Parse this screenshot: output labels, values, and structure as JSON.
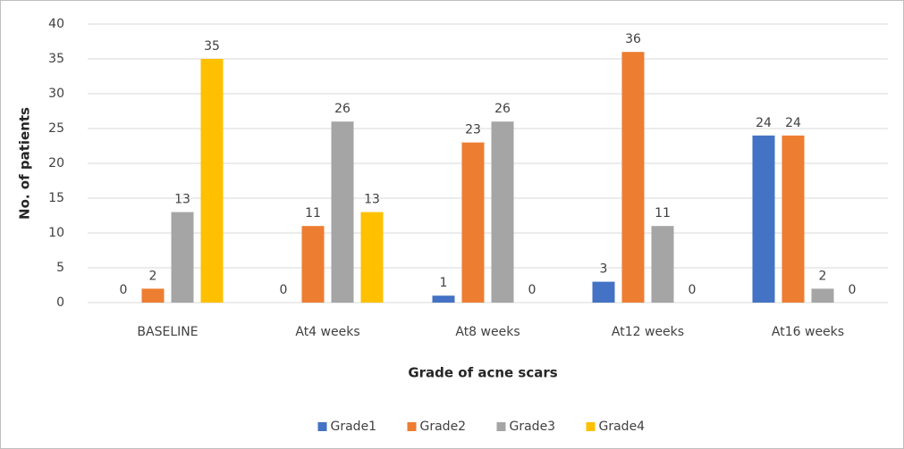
{
  "chart_data": {
    "type": "bar",
    "categories": [
      "BASELINE",
      "At4 weeks",
      "At8 weeks",
      "At12 weeks",
      "At16 weeks"
    ],
    "series": [
      {
        "name": "Grade1",
        "color": "#4472c4",
        "values": [
          0,
          0,
          1,
          3,
          24
        ]
      },
      {
        "name": "Grade2",
        "color": "#ed7d31",
        "values": [
          2,
          11,
          23,
          36,
          24
        ]
      },
      {
        "name": "Grade3",
        "color": "#a5a5a5",
        "values": [
          13,
          26,
          26,
          11,
          2
        ]
      },
      {
        "name": "Grade4",
        "color": "#ffc000",
        "values": [
          35,
          13,
          0,
          0,
          0
        ]
      }
    ],
    "x_label": "Grade of acne scars",
    "y_label": "No. of patients",
    "ylim": [
      0,
      40
    ],
    "yticks": [
      0,
      5,
      10,
      15,
      20,
      25,
      30,
      35,
      40
    ],
    "grid": true,
    "legend": "bottom"
  }
}
